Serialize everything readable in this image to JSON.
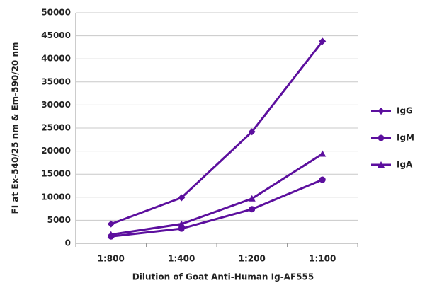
{
  "chart_data": {
    "type": "line",
    "x_label": "Dilution of Goat Anti-Human Ig-AF555",
    "y_label": "FI at Ex-540/25 nm & Em-590/20 nm",
    "categories": [
      "1:800",
      "1:400",
      "1:200",
      "1:100"
    ],
    "series": [
      {
        "name": "IgG",
        "color": "#5c0f9e",
        "marker": "diamond",
        "values": [
          4200,
          9900,
          24200,
          43800
        ]
      },
      {
        "name": "IgM",
        "color": "#5c0f9e",
        "marker": "circle",
        "values": [
          1500,
          3200,
          7400,
          13800
        ]
      },
      {
        "name": "IgA",
        "color": "#5c0f9e",
        "marker": "triangle",
        "values": [
          1900,
          4200,
          9700,
          19400
        ]
      }
    ],
    "ylim": [
      0,
      50000
    ],
    "yticks": [
      0,
      5000,
      10000,
      15000,
      20000,
      25000,
      30000,
      35000,
      40000,
      45000,
      50000
    ],
    "grid": true,
    "legend": "right"
  }
}
